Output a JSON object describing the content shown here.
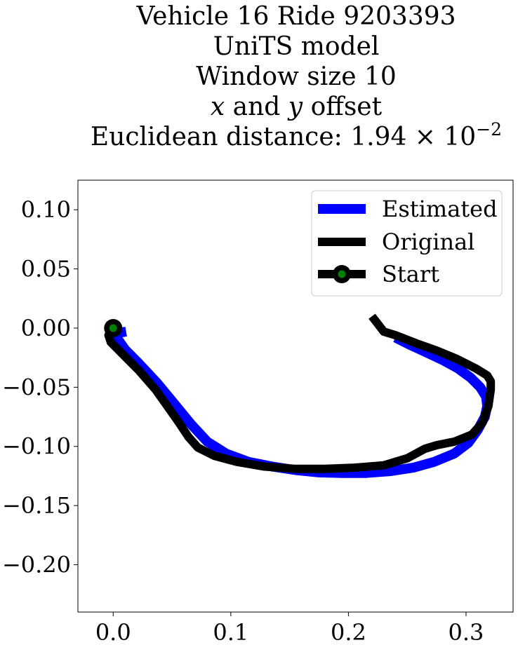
{
  "chart_data": {
    "type": "line",
    "title": "Vehicle 16 Ride 9203393\nUniTS model\nWindow size 10\n$x$ and $y$ offset\nEuclidean distance: $1.94 \\times 10^{-2}$",
    "title_lines": [
      {
        "runs": [
          {
            "t": "Vehicle 16 Ride 9203393"
          }
        ]
      },
      {
        "runs": [
          {
            "t": "UniTS model"
          }
        ]
      },
      {
        "runs": [
          {
            "t": "Window size 10"
          }
        ]
      },
      {
        "runs": [
          {
            "t": "x",
            "style": "italic"
          },
          {
            "t": " and "
          },
          {
            "t": "y",
            "style": "italic"
          },
          {
            "t": " offset"
          }
        ]
      },
      {
        "runs": [
          {
            "t": "Euclidean distance: 1.94 × 10"
          },
          {
            "t": "−2",
            "style": "sup"
          }
        ]
      }
    ],
    "xlabel": "",
    "ylabel": "",
    "xlim": [
      -0.03,
      0.34
    ],
    "ylim": [
      -0.24,
      0.125
    ],
    "xticks": [
      0.0,
      0.1,
      0.2,
      0.3
    ],
    "xtick_labels": [
      "0.0",
      "0.1",
      "0.2",
      "0.3"
    ],
    "yticks": [
      0.1,
      0.05,
      0.0,
      -0.05,
      -0.1,
      -0.15,
      -0.2
    ],
    "ytick_labels": [
      "0.10",
      "0.05",
      "0.00",
      "−0.05",
      "−0.10",
      "−0.15",
      "−0.20"
    ],
    "grid": false,
    "legend_position": "upper right",
    "series": [
      {
        "name": "Estimated",
        "color": "#0000ff",
        "x": [
          0.011,
          0.005,
          0.003,
          0.01,
          0.022,
          0.037,
          0.052,
          0.066,
          0.08,
          0.096,
          0.115,
          0.135,
          0.155,
          0.175,
          0.195,
          0.215,
          0.235,
          0.255,
          0.273,
          0.29,
          0.302,
          0.31,
          0.316,
          0.318,
          0.317,
          0.312,
          0.304,
          0.293,
          0.28,
          0.265,
          0.252,
          0.24
        ],
        "y": [
          -0.003,
          -0.004,
          -0.008,
          -0.018,
          -0.03,
          -0.046,
          -0.064,
          -0.081,
          -0.096,
          -0.106,
          -0.113,
          -0.117,
          -0.12,
          -0.122,
          -0.1225,
          -0.1225,
          -0.121,
          -0.118,
          -0.113,
          -0.106,
          -0.097,
          -0.086,
          -0.075,
          -0.066,
          -0.058,
          -0.05,
          -0.042,
          -0.034,
          -0.027,
          -0.02,
          -0.014,
          -0.008
        ]
      },
      {
        "name": "Original",
        "color": "#000000",
        "x": [
          0.0,
          -0.002,
          -0.004,
          -0.002,
          0.008,
          0.022,
          0.036,
          0.046,
          0.056,
          0.064,
          0.072,
          0.086,
          0.105,
          0.128,
          0.155,
          0.18,
          0.205,
          0.23,
          0.25,
          0.265,
          0.275,
          0.29,
          0.305,
          0.314,
          0.319,
          0.321,
          0.321,
          0.318,
          0.308,
          0.292,
          0.275,
          0.258,
          0.24,
          0.23,
          0.227,
          0.22
        ],
        "y": [
          0.0,
          -0.002,
          -0.006,
          -0.012,
          -0.022,
          -0.036,
          -0.052,
          -0.066,
          -0.08,
          -0.092,
          -0.101,
          -0.108,
          -0.113,
          -0.117,
          -0.119,
          -0.119,
          -0.118,
          -0.116,
          -0.11,
          -0.102,
          -0.099,
          -0.096,
          -0.09,
          -0.08,
          -0.066,
          -0.052,
          -0.045,
          -0.04,
          -0.034,
          -0.026,
          -0.019,
          -0.013,
          -0.006,
          -0.003,
          0.001,
          0.01
        ]
      }
    ],
    "start_point": {
      "name": "Start",
      "x": 0.0,
      "y": 0.0,
      "marker_color": "#008000",
      "edge_color": "#000000"
    }
  }
}
